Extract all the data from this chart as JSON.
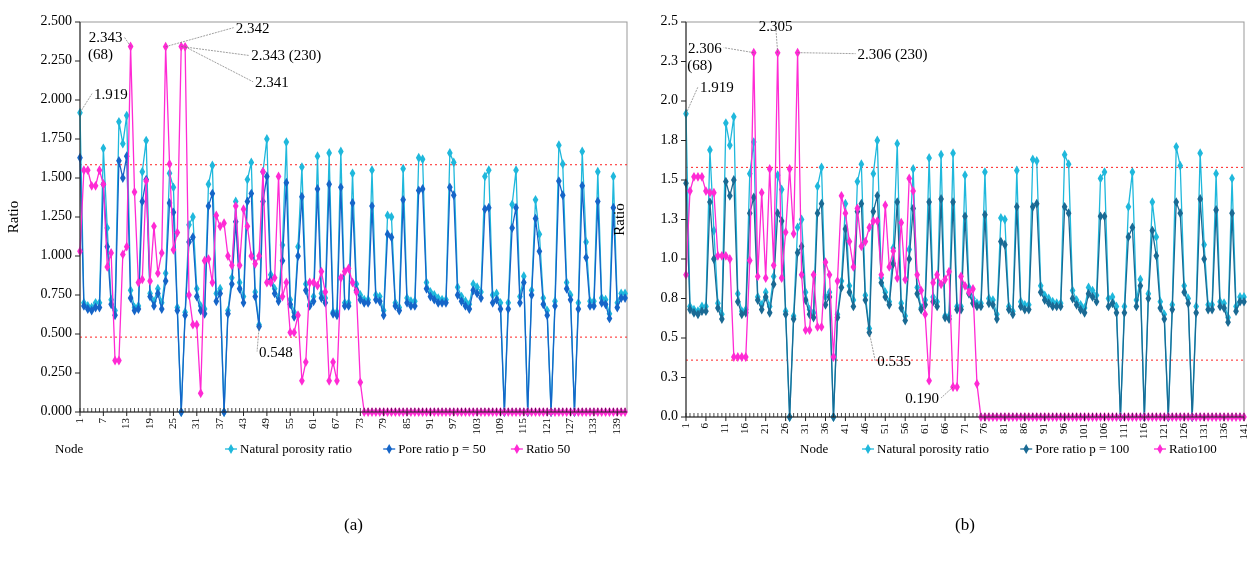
{
  "chart_data": [
    {
      "type": "line",
      "xlabel": "Node",
      "ylabel": "Ratio",
      "marker": "diamond",
      "line_style": "solid",
      "legend": "bottom",
      "grid": false,
      "x": [
        1,
        2,
        3,
        4,
        5,
        6,
        7,
        8,
        9,
        10,
        11,
        12,
        13,
        14,
        15,
        16,
        17,
        18,
        19,
        20,
        21,
        22,
        23,
        24,
        25,
        26,
        27,
        28,
        29,
        30,
        31,
        32,
        33,
        34,
        35,
        36,
        37,
        38,
        39,
        40,
        41,
        42,
        43,
        44,
        45,
        46,
        47,
        48,
        49,
        50,
        51,
        52,
        53,
        54,
        55,
        56,
        57,
        58,
        59,
        60,
        61,
        62,
        63,
        64,
        65,
        66,
        67,
        68,
        69,
        70,
        71,
        72,
        73,
        74,
        75,
        76,
        77,
        78,
        79,
        80,
        81,
        82,
        83,
        84,
        85,
        86,
        87,
        88,
        89,
        90,
        91,
        92,
        93,
        94,
        95,
        96,
        97,
        98,
        99,
        100,
        101,
        102,
        103,
        104,
        105,
        106,
        107,
        108,
        109,
        110,
        111,
        112,
        113,
        114,
        115,
        116,
        117,
        118,
        119,
        120,
        121,
        122,
        123,
        124,
        125,
        126,
        127,
        128,
        129,
        130,
        131,
        132,
        133,
        134,
        135,
        136,
        137,
        138,
        139,
        140,
        141
      ],
      "xlim": [
        1,
        141.5
      ],
      "xticks": [
        1,
        7,
        13,
        19,
        25,
        31,
        37,
        43,
        49,
        55,
        61,
        67,
        73,
        79,
        85,
        91,
        97,
        103,
        109,
        115,
        121,
        127,
        133,
        139
      ],
      "ylim": [
        0,
        2.5
      ],
      "yticks": [
        {
          "value": 0,
          "label": "0.000"
        },
        {
          "value": 0.25,
          "label": "0.250"
        },
        {
          "value": 0.5,
          "label": "0.500"
        },
        {
          "value": 0.75,
          "label": "0.750"
        },
        {
          "value": 1,
          "label": "1.000"
        },
        {
          "value": 1.25,
          "label": "1.250"
        },
        {
          "value": 1.5,
          "label": "1.500"
        },
        {
          "value": 1.75,
          "label": "1.750"
        },
        {
          "value": 2,
          "label": "2.000"
        },
        {
          "value": 2.25,
          "label": "2.250"
        },
        {
          "value": 2.5,
          "label": "2.500"
        }
      ],
      "series": [
        {
          "name": "Natural porosity ratio",
          "color": "#1fb8dc",
          "values": [
            1.919,
            0.7,
            0.68,
            0.67,
            0.7,
            0.7,
            1.69,
            1.18,
            0.72,
            0.65,
            1.86,
            1.72,
            1.9,
            0.78,
            0.67,
            0.68,
            1.54,
            1.74,
            0.76,
            0.71,
            0.79,
            0.7,
            0.89,
            1.53,
            1.44,
            0.67,
            0.0,
            0.64,
            1.2,
            1.25,
            0.79,
            0.68,
            0.66,
            1.46,
            1.58,
            0.76,
            0.79,
            0.0,
            0.65,
            0.86,
            1.35,
            0.83,
            0.74,
            1.49,
            1.6,
            0.77,
            0.56,
            1.54,
            1.75,
            0.88,
            0.79,
            0.73,
            1.07,
            1.73,
            0.72,
            0.64,
            1.06,
            1.57,
            0.82,
            0.69,
            0.74,
            1.64,
            0.76,
            0.73,
            1.66,
            0.64,
            0.64,
            1.67,
            0.7,
            0.7,
            1.53,
            0.82,
            0.75,
            0.72,
            0.72,
            1.55,
            0.75,
            0.74,
            0.65,
            1.26,
            1.25,
            0.7,
            0.67,
            1.56,
            0.73,
            0.71,
            0.71,
            1.63,
            1.62,
            0.83,
            0.77,
            0.75,
            0.73,
            0.72,
            0.72,
            1.66,
            1.6,
            0.8,
            0.74,
            0.71,
            0.69,
            0.82,
            0.8,
            0.77,
            1.51,
            1.55,
            0.75,
            0.76,
            0.7,
            0.0,
            0.7,
            1.33,
            1.55,
            0.74,
            0.87,
            0.0,
            0.78,
            1.36,
            1.14,
            0.73,
            0.65,
            0.0,
            0.71,
            1.71,
            1.59,
            0.83,
            0.75,
            0.0,
            0.7,
            1.67,
            1.09,
            0.71,
            0.71,
            1.54,
            0.73,
            0.72,
            0.63,
            1.51,
            0.7,
            0.76,
            0.76
          ]
        },
        {
          "name": "Pore ratio p = 50",
          "color": "#1565c8",
          "values": [
            1.63,
            0.68,
            0.66,
            0.65,
            0.67,
            0.67,
            1.46,
            1.06,
            0.69,
            0.62,
            1.61,
            1.5,
            1.64,
            0.73,
            0.65,
            0.66,
            1.35,
            1.49,
            0.74,
            0.68,
            0.76,
            0.66,
            0.84,
            1.34,
            1.28,
            0.65,
            0.0,
            0.62,
            1.09,
            1.12,
            0.74,
            0.65,
            0.63,
            1.32,
            1.4,
            0.71,
            0.76,
            0.0,
            0.63,
            0.82,
            1.22,
            0.79,
            0.7,
            1.35,
            1.4,
            0.74,
            0.548,
            1.35,
            1.51,
            0.85,
            0.76,
            0.71,
            0.97,
            1.47,
            0.69,
            0.61,
            1.0,
            1.38,
            0.78,
            0.68,
            0.71,
            1.43,
            0.73,
            0.7,
            1.46,
            0.63,
            0.62,
            1.44,
            0.68,
            0.68,
            1.34,
            0.78,
            0.72,
            0.7,
            0.7,
            1.32,
            0.72,
            0.71,
            0.62,
            1.14,
            1.12,
            0.68,
            0.65,
            1.36,
            0.7,
            0.68,
            0.68,
            1.42,
            1.43,
            0.79,
            0.74,
            0.72,
            0.7,
            0.7,
            0.7,
            1.44,
            1.39,
            0.75,
            0.71,
            0.68,
            0.66,
            0.78,
            0.76,
            0.73,
            1.3,
            1.31,
            0.7,
            0.72,
            0.66,
            0.0,
            0.66,
            1.18,
            1.31,
            0.7,
            0.83,
            0.0,
            0.75,
            1.24,
            1.03,
            0.69,
            0.62,
            0.0,
            0.68,
            1.48,
            1.39,
            0.79,
            0.72,
            0.0,
            0.66,
            1.45,
            0.99,
            0.68,
            0.68,
            1.35,
            0.7,
            0.69,
            0.6,
            1.31,
            0.67,
            0.73,
            0.73
          ]
        },
        {
          "name": "Ratio 50",
          "color": "#ff2ad4",
          "values": [
            1.03,
            1.55,
            1.55,
            1.45,
            1.45,
            1.55,
            1.46,
            0.93,
            1.02,
            0.33,
            0.33,
            1.01,
            1.06,
            2.343,
            1.41,
            0.83,
            0.85,
            1.48,
            0.84,
            1.19,
            0.89,
            1.02,
            2.342,
            1.59,
            1.04,
            1.15,
            2.343,
            2.341,
            0.75,
            0.56,
            0.56,
            0.12,
            0.97,
            0.98,
            0.83,
            1.26,
            1.19,
            1.21,
            1.0,
            0.94,
            1.32,
            0.94,
            1.3,
            1.19,
            1.0,
            0.95,
            1.0,
            1.54,
            0.83,
            0.83,
            0.86,
            1.51,
            0.74,
            0.83,
            0.51,
            0.51,
            0.62,
            0.2,
            0.32,
            0.83,
            0.83,
            0.81,
            0.9,
            0.77,
            0.2,
            0.32,
            0.2,
            0.86,
            0.9,
            0.92,
            0.83,
            0.77,
            0.19,
            0,
            0,
            0,
            0,
            0,
            0,
            0,
            0,
            0,
            0,
            0,
            0,
            0,
            0,
            0,
            0,
            0,
            0,
            0,
            0,
            0,
            0,
            0,
            0,
            0,
            0,
            0,
            0,
            0,
            0,
            0,
            0,
            0,
            0,
            0,
            0,
            0,
            0,
            0,
            0,
            0,
            0,
            0,
            0,
            0,
            0,
            0,
            0,
            0,
            0,
            0,
            0,
            0,
            0,
            0,
            0,
            0,
            0,
            0,
            0,
            0,
            0,
            0,
            0,
            0,
            0,
            0,
            0
          ]
        }
      ],
      "ref_lines": [
        {
          "axis": "y",
          "value": 1.585,
          "color": "#ff2020",
          "line_style": "dotted"
        },
        {
          "axis": "y",
          "value": 0.48,
          "color": "#ff2020",
          "line_style": "dotted"
        }
      ],
      "annotations": [
        {
          "text": "2.343\n(68)",
          "x": 14,
          "y": 2.343
        },
        {
          "text": "1.919",
          "x": 1,
          "y": 1.919
        },
        {
          "text": "2.342",
          "x": 23,
          "y": 2.342
        },
        {
          "text": "2.343 (230)",
          "x": 27,
          "y": 2.343
        },
        {
          "text": "2.341",
          "x": 28,
          "y": 2.341
        },
        {
          "text": "0.548",
          "x": 47,
          "y": 0.548
        },
        "(a)"
      ]
    },
    {
      "type": "line",
      "xlabel": "Node",
      "ylabel": "Ratio",
      "marker": "diamond",
      "line_style": "solid",
      "legend": "bottom",
      "grid": false,
      "x": [
        1,
        2,
        3,
        4,
        5,
        6,
        7,
        8,
        9,
        10,
        11,
        12,
        13,
        14,
        15,
        16,
        17,
        18,
        19,
        20,
        21,
        22,
        23,
        24,
        25,
        26,
        27,
        28,
        29,
        30,
        31,
        32,
        33,
        34,
        35,
        36,
        37,
        38,
        39,
        40,
        41,
        42,
        43,
        44,
        45,
        46,
        47,
        48,
        49,
        50,
        51,
        52,
        53,
        54,
        55,
        56,
        57,
        58,
        59,
        60,
        61,
        62,
        63,
        64,
        65,
        66,
        67,
        68,
        69,
        70,
        71,
        72,
        73,
        74,
        75,
        76,
        77,
        78,
        79,
        80,
        81,
        82,
        83,
        84,
        85,
        86,
        87,
        88,
        89,
        90,
        91,
        92,
        93,
        94,
        95,
        96,
        97,
        98,
        99,
        100,
        101,
        102,
        103,
        104,
        105,
        106,
        107,
        108,
        109,
        110,
        111,
        112,
        113,
        114,
        115,
        116,
        117,
        118,
        119,
        120,
        121,
        122,
        123,
        124,
        125,
        126,
        127,
        128,
        129,
        130,
        131,
        132,
        133,
        134,
        135,
        136,
        137,
        138,
        139,
        140,
        141
      ],
      "xlim": [
        1,
        141
      ],
      "xticks": [
        1,
        6,
        11,
        16,
        21,
        26,
        31,
        36,
        41,
        46,
        51,
        56,
        61,
        66,
        71,
        76,
        81,
        86,
        91,
        96,
        101,
        106,
        111,
        116,
        121,
        126,
        131,
        136,
        141
      ],
      "ylim": [
        0,
        2.5
      ],
      "yticks": [
        {
          "value": 0,
          "label": "0.0"
        },
        {
          "value": 0.25,
          "label": "0.3"
        },
        {
          "value": 0.5,
          "label": "0.5"
        },
        {
          "value": 0.75,
          "label": "0.8"
        },
        {
          "value": 1,
          "label": "1.0"
        },
        {
          "value": 1.25,
          "label": "1.3"
        },
        {
          "value": 1.5,
          "label": "1.5"
        },
        {
          "value": 1.75,
          "label": "1.8"
        },
        {
          "value": 2,
          "label": "2.0"
        },
        {
          "value": 2.25,
          "label": "2.3"
        },
        {
          "value": 2.5,
          "label": "2.5"
        }
      ],
      "series": [
        {
          "name": "Natural porosity ratio",
          "color": "#1fb8dc",
          "values": [
            1.919,
            0.7,
            0.68,
            0.67,
            0.7,
            0.7,
            1.69,
            1.18,
            0.72,
            0.65,
            1.86,
            1.72,
            1.9,
            0.78,
            0.67,
            0.68,
            1.54,
            1.74,
            0.76,
            0.71,
            0.79,
            0.7,
            0.89,
            1.53,
            1.44,
            0.67,
            0.0,
            0.64,
            1.2,
            1.25,
            0.79,
            0.68,
            0.66,
            1.46,
            1.58,
            0.76,
            0.79,
            0.0,
            0.65,
            0.86,
            1.35,
            0.83,
            0.74,
            1.49,
            1.6,
            0.77,
            0.56,
            1.54,
            1.75,
            0.88,
            0.79,
            0.73,
            1.07,
            1.73,
            0.72,
            0.64,
            1.06,
            1.57,
            0.82,
            0.69,
            0.74,
            1.64,
            0.76,
            0.73,
            1.66,
            0.64,
            0.64,
            1.67,
            0.7,
            0.7,
            1.53,
            0.82,
            0.75,
            0.72,
            0.72,
            1.55,
            0.75,
            0.74,
            0.65,
            1.26,
            1.25,
            0.7,
            0.67,
            1.56,
            0.73,
            0.71,
            0.71,
            1.63,
            1.62,
            0.83,
            0.77,
            0.75,
            0.73,
            0.72,
            0.72,
            1.66,
            1.6,
            0.8,
            0.74,
            0.71,
            0.69,
            0.82,
            0.8,
            0.77,
            1.51,
            1.55,
            0.75,
            0.76,
            0.7,
            0.0,
            0.7,
            1.33,
            1.55,
            0.74,
            0.87,
            0.0,
            0.78,
            1.36,
            1.14,
            0.73,
            0.65,
            0.0,
            0.71,
            1.71,
            1.59,
            0.83,
            0.75,
            0.0,
            0.7,
            1.67,
            1.09,
            0.71,
            0.71,
            1.54,
            0.73,
            0.72,
            0.63,
            1.51,
            0.7,
            0.76,
            0.76
          ]
        },
        {
          "name": "Pore ratio p = 100",
          "color": "#1a6a94",
          "values": [
            1.48,
            0.68,
            0.66,
            0.65,
            0.67,
            0.67,
            1.36,
            1.0,
            0.69,
            0.62,
            1.49,
            1.4,
            1.5,
            0.73,
            0.65,
            0.66,
            1.29,
            1.39,
            0.74,
            0.68,
            0.76,
            0.66,
            0.84,
            1.29,
            1.24,
            0.65,
            0.0,
            0.62,
            1.04,
            1.08,
            0.74,
            0.65,
            0.63,
            1.29,
            1.35,
            0.71,
            0.76,
            0.0,
            0.63,
            0.82,
            1.19,
            0.79,
            0.7,
            1.3,
            1.35,
            0.74,
            0.535,
            1.3,
            1.4,
            0.85,
            0.76,
            0.71,
            0.97,
            1.36,
            0.69,
            0.61,
            1.0,
            1.32,
            0.78,
            0.68,
            0.71,
            1.36,
            0.73,
            0.7,
            1.38,
            0.63,
            0.62,
            1.36,
            0.68,
            0.68,
            1.27,
            0.78,
            0.72,
            0.7,
            0.7,
            1.28,
            0.72,
            0.71,
            0.62,
            1.11,
            1.09,
            0.68,
            0.65,
            1.33,
            0.7,
            0.68,
            0.68,
            1.33,
            1.35,
            0.79,
            0.74,
            0.72,
            0.7,
            0.7,
            0.7,
            1.33,
            1.29,
            0.75,
            0.71,
            0.68,
            0.66,
            0.78,
            0.76,
            0.73,
            1.27,
            1.27,
            0.7,
            0.72,
            0.66,
            0.0,
            0.66,
            1.14,
            1.2,
            0.7,
            0.83,
            0.0,
            0.75,
            1.18,
            1.02,
            0.69,
            0.62,
            0.0,
            0.68,
            1.36,
            1.29,
            0.79,
            0.72,
            0.0,
            0.66,
            1.38,
            1.0,
            0.68,
            0.68,
            1.31,
            0.7,
            0.69,
            0.6,
            1.29,
            0.67,
            0.73,
            0.73
          ]
        },
        {
          "name": "Ratio100",
          "color": "#ff2ad4",
          "values": [
            0.9,
            1.43,
            1.52,
            1.52,
            1.52,
            1.43,
            1.42,
            1.42,
            1.02,
            1.02,
            1.02,
            1.0,
            0.38,
            0.38,
            0.38,
            0.38,
            0.99,
            2.306,
            0.89,
            1.42,
            0.88,
            1.57,
            0.96,
            2.305,
            0.88,
            1.17,
            1.57,
            1.16,
            2.306,
            0.9,
            0.55,
            0.55,
            0.9,
            0.57,
            0.57,
            0.98,
            0.9,
            0.38,
            0.86,
            1.4,
            1.29,
            1.11,
            0.95,
            1.32,
            1.08,
            1.11,
            1.2,
            1.24,
            1.24,
            0.9,
            1.34,
            0.95,
            1.05,
            0.88,
            1.23,
            0.87,
            1.51,
            1.43,
            0.9,
            0.8,
            0.65,
            0.23,
            0.85,
            0.9,
            0.84,
            0.87,
            0.92,
            0.19,
            0.19,
            0.89,
            0.83,
            0.79,
            0.81,
            0.21,
            0,
            0,
            0,
            0,
            0,
            0,
            0,
            0,
            0,
            0,
            0,
            0,
            0,
            0,
            0,
            0,
            0,
            0,
            0,
            0,
            0,
            0,
            0,
            0,
            0,
            0,
            0,
            0,
            0,
            0,
            0,
            0,
            0,
            0,
            0,
            0,
            0,
            0,
            0,
            0,
            0,
            0,
            0,
            0,
            0,
            0,
            0,
            0,
            0,
            0,
            0,
            0,
            0,
            0,
            0,
            0,
            0,
            0,
            0,
            0,
            0,
            0,
            0,
            0,
            0,
            0,
            0
          ]
        }
      ],
      "ref_lines": [
        {
          "axis": "y",
          "value": 1.58,
          "color": "#ff2020",
          "line_style": "dotted"
        },
        {
          "axis": "y",
          "value": 0.36,
          "color": "#ff2020",
          "line_style": "dotted"
        }
      ],
      "annotations": [
        {
          "text": "2.306\n(68)",
          "x": 18,
          "y": 2.306
        },
        {
          "text": "2.305",
          "x": 24,
          "y": 2.305
        },
        {
          "text": "2.306 (230)",
          "x": 29,
          "y": 2.306
        },
        {
          "text": "1.919",
          "x": 1,
          "y": 1.919
        },
        {
          "text": "0.535",
          "x": 47,
          "y": 0.535
        },
        {
          "text": "0.190",
          "x": 68,
          "y": 0.19
        },
        "(b)"
      ]
    }
  ]
}
